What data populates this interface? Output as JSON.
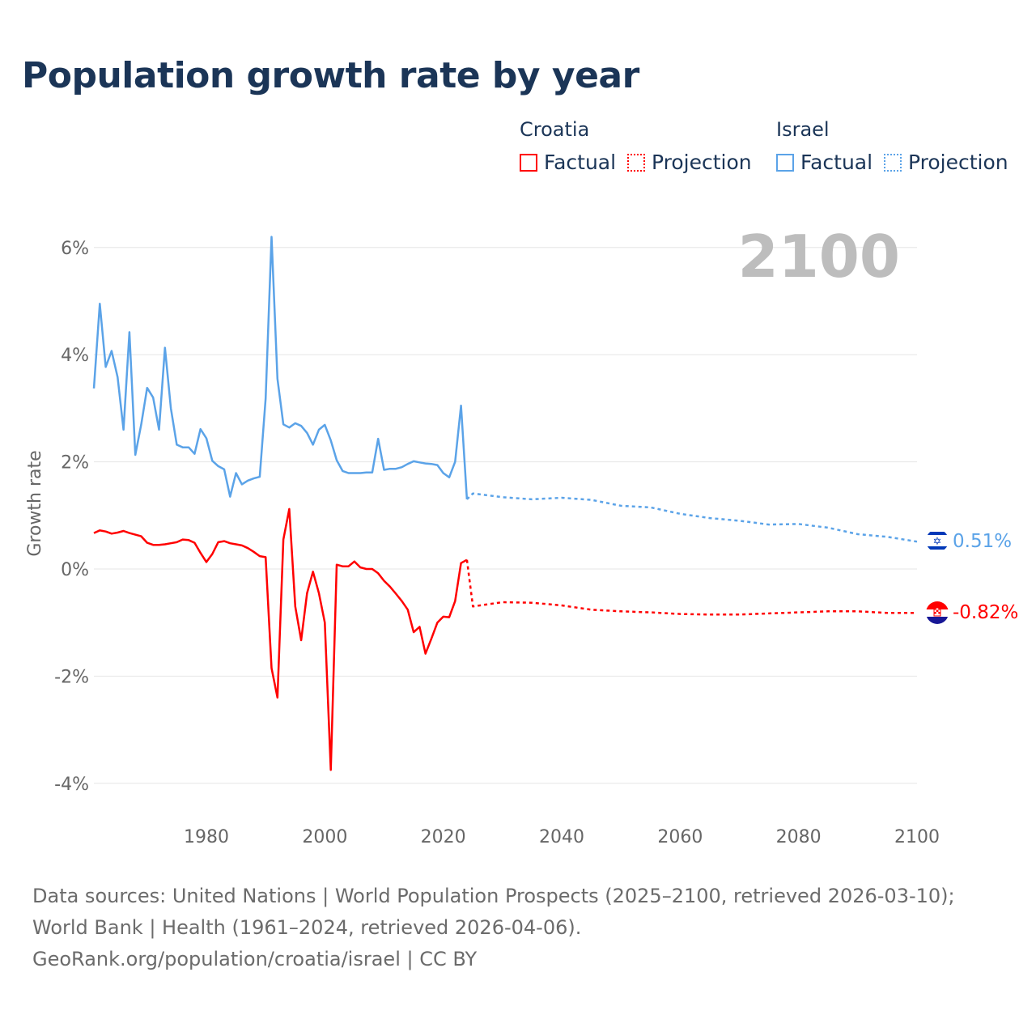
{
  "title": "Population growth rate by year",
  "legend": {
    "croatia": {
      "name": "Croatia",
      "factual": "Factual",
      "projection": "Projection",
      "color": "#ff0000"
    },
    "israel": {
      "name": "Israel",
      "factual": "Factual",
      "projection": "Projection",
      "color": "#5ba3e8"
    }
  },
  "year_watermark": "2100",
  "end_labels": {
    "israel": "0.51%",
    "croatia": "-0.82%"
  },
  "footer": {
    "sources": "Data sources: United Nations | World Population Prospects (2025–2100, retrieved 2026-03-10); World Bank | Health (1961–2024, retrieved 2026-04-06).",
    "credit": "GeoRank.org/population/croatia/israel | CC BY"
  },
  "chart_data": {
    "type": "line",
    "title": "Population growth rate by year",
    "xlabel": "",
    "ylabel": "Growth rate",
    "xlim": [
      1961,
      2100
    ],
    "ylim": [
      -4.5,
      6.5
    ],
    "x_ticks": [
      "1980",
      "2000",
      "2020",
      "2040",
      "2060",
      "2080",
      "2100"
    ],
    "x_tick_values": [
      1980,
      2000,
      2020,
      2040,
      2060,
      2080,
      2100
    ],
    "y_ticks": [
      "6%",
      "4%",
      "2%",
      "0%",
      "-2%",
      "-4%"
    ],
    "y_tick_values": [
      6,
      4,
      2,
      0,
      -2,
      -4
    ],
    "grid": true,
    "legend_position": "top-right",
    "series": [
      {
        "name": "Israel Factual",
        "color": "#5ba3e8",
        "dashed": false,
        "x": [
          1961,
          1962,
          1963,
          1964,
          1965,
          1966,
          1967,
          1968,
          1969,
          1970,
          1971,
          1972,
          1973,
          1974,
          1975,
          1976,
          1977,
          1978,
          1979,
          1980,
          1981,
          1982,
          1983,
          1984,
          1985,
          1986,
          1987,
          1988,
          1989,
          1990,
          1991,
          1992,
          1993,
          1994,
          1995,
          1996,
          1997,
          1998,
          1999,
          2000,
          2001,
          2002,
          2003,
          2004,
          2005,
          2006,
          2007,
          2008,
          2009,
          2010,
          2011,
          2012,
          2013,
          2014,
          2015,
          2016,
          2017,
          2018,
          2019,
          2020,
          2021,
          2022,
          2023,
          2024
        ],
        "y": [
          3.37,
          4.95,
          3.77,
          4.07,
          3.58,
          2.6,
          4.42,
          2.13,
          2.7,
          3.38,
          3.2,
          2.6,
          4.13,
          3.0,
          2.32,
          2.27,
          2.27,
          2.15,
          2.61,
          2.44,
          2.02,
          1.92,
          1.86,
          1.35,
          1.79,
          1.58,
          1.65,
          1.69,
          1.72,
          3.18,
          6.2,
          3.55,
          2.7,
          2.64,
          2.72,
          2.67,
          2.54,
          2.32,
          2.6,
          2.69,
          2.4,
          2.03,
          1.83,
          1.79,
          1.79,
          1.79,
          1.8,
          1.8,
          2.43,
          1.85,
          1.87,
          1.87,
          1.9,
          1.96,
          2.01,
          1.99,
          1.97,
          1.96,
          1.94,
          1.79,
          1.71,
          2.0,
          3.05,
          1.3
        ]
      },
      {
        "name": "Israel Projection",
        "color": "#5ba3e8",
        "dashed": true,
        "x": [
          2024,
          2025,
          2030,
          2035,
          2040,
          2045,
          2050,
          2055,
          2060,
          2065,
          2070,
          2075,
          2080,
          2085,
          2090,
          2095,
          2100
        ],
        "y": [
          1.3,
          1.41,
          1.34,
          1.3,
          1.33,
          1.29,
          1.18,
          1.15,
          1.03,
          0.95,
          0.9,
          0.83,
          0.84,
          0.77,
          0.65,
          0.6,
          0.51
        ]
      },
      {
        "name": "Croatia Factual",
        "color": "#ff0000",
        "dashed": false,
        "x": [
          1961,
          1962,
          1963,
          1964,
          1965,
          1966,
          1967,
          1968,
          1969,
          1970,
          1971,
          1972,
          1973,
          1974,
          1975,
          1976,
          1977,
          1978,
          1979,
          1980,
          1981,
          1982,
          1983,
          1984,
          1985,
          1986,
          1987,
          1988,
          1989,
          1990,
          1991,
          1992,
          1993,
          1994,
          1995,
          1996,
          1997,
          1998,
          1999,
          2000,
          2001,
          2002,
          2003,
          2004,
          2005,
          2006,
          2007,
          2008,
          2009,
          2010,
          2011,
          2012,
          2013,
          2014,
          2015,
          2016,
          2017,
          2018,
          2019,
          2020,
          2021,
          2022,
          2023,
          2024
        ],
        "y": [
          0.67,
          0.72,
          0.7,
          0.66,
          0.68,
          0.71,
          0.67,
          0.64,
          0.61,
          0.49,
          0.45,
          0.45,
          0.46,
          0.48,
          0.5,
          0.55,
          0.54,
          0.49,
          0.3,
          0.13,
          0.28,
          0.5,
          0.52,
          0.48,
          0.46,
          0.44,
          0.39,
          0.32,
          0.24,
          0.22,
          -1.85,
          -2.4,
          0.55,
          1.12,
          -0.7,
          -1.33,
          -0.45,
          -0.05,
          -0.45,
          -1.0,
          -3.75,
          0.08,
          0.05,
          0.05,
          0.14,
          0.03,
          0.0,
          0.0,
          -0.08,
          -0.22,
          -0.33,
          -0.46,
          -0.6,
          -0.76,
          -1.18,
          -1.08,
          -1.58,
          -1.3,
          -1.0,
          -0.89,
          -0.9,
          -0.6,
          0.11,
          0.17
        ]
      },
      {
        "name": "Croatia Projection",
        "color": "#ff0000",
        "dashed": true,
        "x": [
          2024,
          2025,
          2030,
          2035,
          2040,
          2045,
          2050,
          2055,
          2060,
          2065,
          2070,
          2075,
          2080,
          2085,
          2090,
          2095,
          2100
        ],
        "y": [
          0.17,
          -0.7,
          -0.62,
          -0.63,
          -0.68,
          -0.76,
          -0.79,
          -0.81,
          -0.84,
          -0.85,
          -0.85,
          -0.83,
          -0.81,
          -0.79,
          -0.79,
          -0.82,
          -0.82
        ]
      }
    ]
  }
}
